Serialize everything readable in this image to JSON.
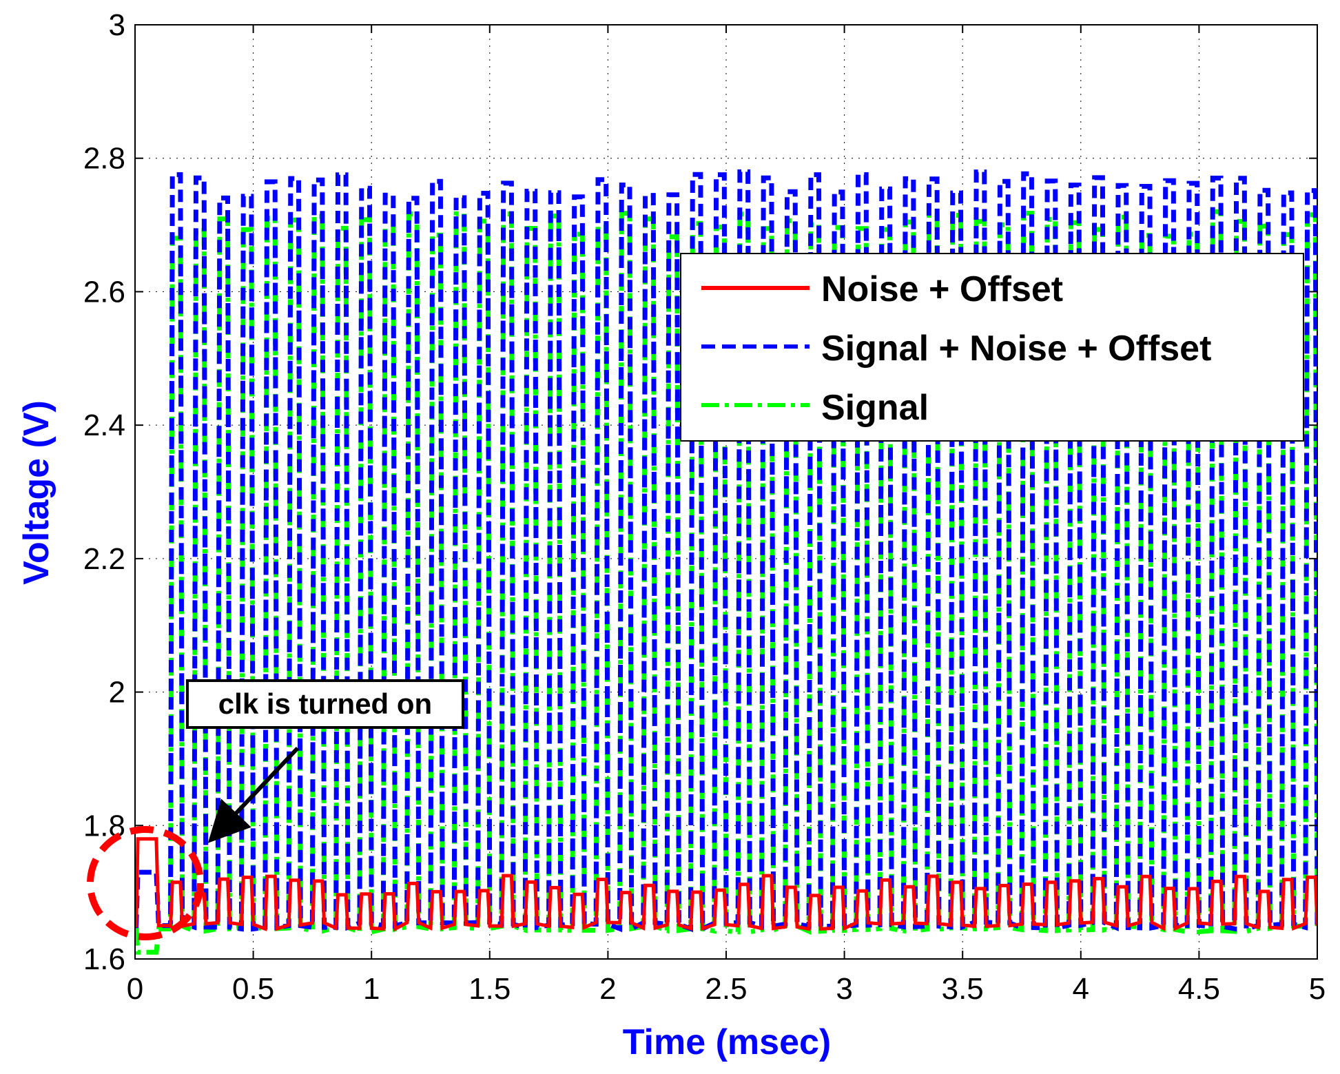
{
  "chart_data": {
    "type": "line",
    "title": "",
    "xlabel": "Time (msec)",
    "ylabel": "Voltage (V)",
    "xlim": [
      0,
      5
    ],
    "ylim": [
      1.6,
      3
    ],
    "xticks": [
      0,
      0.5,
      1,
      1.5,
      2,
      2.5,
      3,
      3.5,
      4,
      4.5,
      5
    ],
    "xtick_labels": [
      "0",
      "0.5",
      "1",
      "1.5",
      "2",
      "2.5",
      "3",
      "3.5",
      "4",
      "4.5",
      "5"
    ],
    "yticks": [
      1.6,
      1.8,
      2,
      2.2,
      2.4,
      2.6,
      2.8,
      3
    ],
    "ytick_labels": [
      "1.6",
      "1.8",
      "2",
      "2.2",
      "2.4",
      "2.6",
      "2.8",
      "3"
    ],
    "grid": true,
    "legend_position": "top-right",
    "clock_period_ms": 0.1,
    "clock_on_ms": 0.15,
    "series": [
      {
        "name": "Noise + Offset",
        "color": "#ff0000",
        "style": "solid",
        "low": 1.65,
        "high": 1.71,
        "initial_peak": 1.78
      },
      {
        "name": "Signal + Noise + Offset",
        "color": "#0000ff",
        "style": "dashed",
        "low": 1.65,
        "high": 2.76,
        "initial_peak": 1.73
      },
      {
        "name": "Signal",
        "color": "#00ff00",
        "style": "dashdot",
        "low": 1.645,
        "high": 2.7,
        "initial_peak": 1.61
      }
    ],
    "annotations": [
      {
        "text": "clk is turned on",
        "target_x": 0.05,
        "target_y": 1.71
      }
    ]
  }
}
